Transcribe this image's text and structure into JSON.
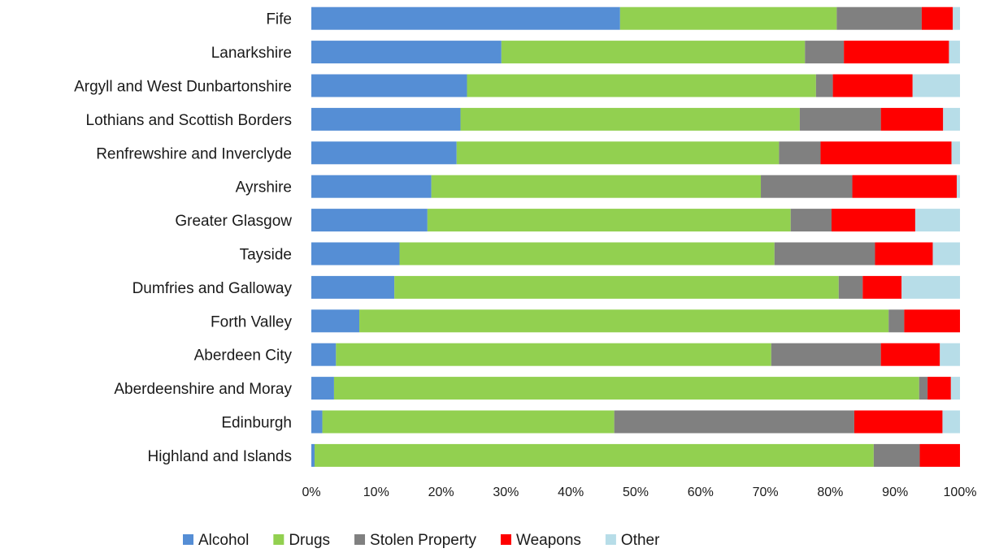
{
  "chart_data": {
    "type": "bar",
    "orientation": "horizontal",
    "stacked": "percent",
    "title": "",
    "xlabel": "",
    "ylabel": "",
    "xlim": [
      0,
      100
    ],
    "x_ticks": [
      "0%",
      "10%",
      "20%",
      "30%",
      "40%",
      "50%",
      "60%",
      "70%",
      "80%",
      "90%",
      "100%"
    ],
    "grid": false,
    "legend_position": "bottom",
    "categories": [
      "Fife",
      "Lanarkshire",
      "Argyll and West Dunbartonshire",
      "Lothians and Scottish Borders",
      "Renfrewshire and Inverclyde",
      "Ayrshire",
      "Greater Glasgow",
      "Tayside",
      "Dumfries and Galloway",
      "Forth Valley",
      "Aberdeen City",
      "Aberdeenshire and Moray",
      "Edinburgh",
      "Highland and Islands"
    ],
    "series": [
      {
        "name": "Alcohol",
        "color": "#558ed5",
        "values": [
          47.6,
          29.3,
          24.0,
          23.0,
          22.4,
          18.5,
          17.9,
          13.6,
          12.8,
          7.4,
          3.8,
          3.5,
          1.7,
          0.5
        ]
      },
      {
        "name": "Drugs",
        "color": "#92d050",
        "values": [
          33.4,
          46.8,
          53.8,
          52.3,
          49.7,
          50.8,
          56.0,
          57.8,
          68.5,
          81.6,
          67.1,
          90.2,
          45.0,
          86.2
        ]
      },
      {
        "name": "Stolen Property",
        "color": "#808080",
        "values": [
          13.1,
          6.0,
          2.6,
          12.5,
          6.4,
          14.1,
          6.3,
          15.5,
          3.7,
          2.4,
          16.9,
          1.3,
          37.0,
          7.1
        ]
      },
      {
        "name": "Weapons",
        "color": "#ff0000",
        "values": [
          4.8,
          16.2,
          12.3,
          9.6,
          20.2,
          16.1,
          12.9,
          8.9,
          6.0,
          8.6,
          9.1,
          3.6,
          13.6,
          6.2
        ]
      },
      {
        "name": "Other",
        "color": "#b7dde8",
        "values": [
          1.1,
          1.7,
          7.3,
          2.6,
          1.3,
          0.5,
          6.9,
          4.2,
          9.0,
          0.0,
          3.1,
          1.4,
          2.7,
          0.0
        ]
      }
    ]
  }
}
